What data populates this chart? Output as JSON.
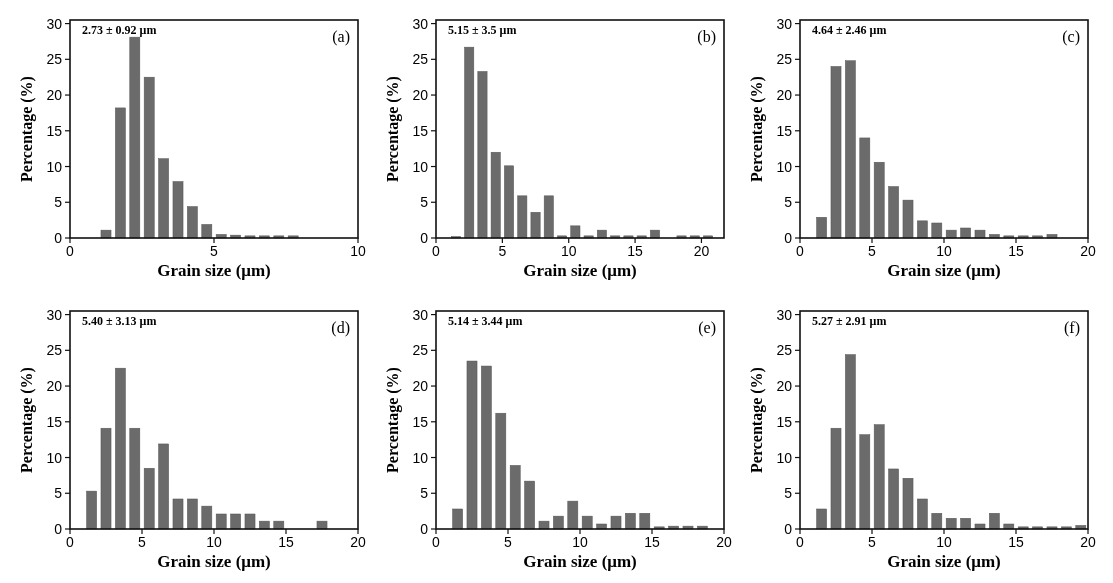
{
  "chart_data": [
    {
      "type": "histogram",
      "xlabel": "Grain size (μm)",
      "ylabel": "Percentage (%)",
      "annotations": [
        "2.73 ± 0.92 μm",
        "(a)"
      ],
      "color": "#6b6b6b",
      "bins": [
        1,
        1.5,
        2,
        2.5,
        3,
        3.5,
        4,
        4.5,
        5,
        5.5,
        6,
        6.5,
        7,
        7.5,
        8
      ],
      "values": [
        1.1,
        18.2,
        28.1,
        22.5,
        11.1,
        7.9,
        4.4,
        1.9,
        0.5,
        0.4,
        0.3,
        0.3,
        0.3,
        0.3
      ],
      "xlim": [
        0,
        10
      ],
      "xticks": [
        0,
        5,
        10
      ],
      "ylim": [
        0,
        30.5
      ],
      "yticks": [
        0,
        5,
        10,
        15,
        20,
        25,
        30
      ]
    },
    {
      "type": "histogram",
      "xlabel": "Grain size (μm)",
      "ylabel": "Percentage (%)",
      "annotations": [
        "5.15 ± 3.5 μm",
        "(b)"
      ],
      "color": "#6b6b6b",
      "bins": [
        1,
        2,
        3,
        4,
        5,
        6,
        7,
        8,
        9,
        10,
        11,
        12,
        13,
        14,
        15,
        16,
        17,
        18,
        19,
        20,
        21
      ],
      "values": [
        0.2,
        26.7,
        23.3,
        12.0,
        10.1,
        5.9,
        3.6,
        5.9,
        0.3,
        1.7,
        0.3,
        1.1,
        0.3,
        0.3,
        0.3,
        1.1,
        0,
        0.3,
        0.3,
        0.3
      ],
      "xlim": [
        0,
        21.7
      ],
      "xticks": [
        0,
        5,
        10,
        15,
        20
      ],
      "ylim": [
        0,
        30.5
      ],
      "yticks": [
        0,
        5,
        10,
        15,
        20,
        25,
        30
      ]
    },
    {
      "type": "histogram",
      "xlabel": "Grain size (μm)",
      "ylabel": "Percentage (%)",
      "annotations": [
        "4.64 ± 2.46 μm",
        "(c)"
      ],
      "color": "#6b6b6b",
      "bins": [
        1,
        2,
        3,
        4,
        5,
        6,
        7,
        8,
        9,
        10,
        11,
        12,
        13,
        14,
        15,
        16,
        17,
        18
      ],
      "values": [
        2.9,
        24.0,
        24.8,
        14.0,
        10.6,
        7.2,
        5.3,
        2.4,
        2.1,
        1.1,
        1.4,
        1.1,
        0.5,
        0.3,
        0.3,
        0.3,
        0.5
      ],
      "xlim": [
        0,
        20
      ],
      "xticks": [
        0,
        5,
        10,
        15,
        20
      ],
      "ylim": [
        0,
        30.5
      ],
      "yticks": [
        0,
        5,
        10,
        15,
        20,
        25,
        30
      ]
    },
    {
      "type": "histogram",
      "xlabel": "Grain size (μm)",
      "ylabel": "Percentage (%)",
      "annotations": [
        "5.40 ± 3.13 μm",
        "(d)"
      ],
      "color": "#6b6b6b",
      "bins": [
        1,
        2,
        3,
        4,
        5,
        6,
        7,
        8,
        9,
        10,
        11,
        12,
        13,
        14,
        15,
        16,
        17,
        18
      ],
      "values": [
        5.3,
        14.1,
        22.5,
        14.1,
        8.5,
        11.9,
        4.2,
        4.2,
        3.2,
        2.1,
        2.1,
        2.1,
        1.1,
        1.1,
        0,
        0,
        1.1
      ],
      "xlim": [
        0,
        20
      ],
      "xticks": [
        0,
        5,
        10,
        15,
        20
      ],
      "ylim": [
        0,
        30.5
      ],
      "yticks": [
        0,
        5,
        10,
        15,
        20,
        25,
        30
      ]
    },
    {
      "type": "histogram",
      "xlabel": "Grain size (μm)",
      "ylabel": "Percentage (%)",
      "annotations": [
        "5.14 ± 3.44 μm",
        "(e)"
      ],
      "color": "#6b6b6b",
      "bins": [
        1,
        2,
        3,
        4,
        5,
        6,
        7,
        8,
        9,
        10,
        11,
        12,
        13,
        14,
        15,
        16,
        17,
        18,
        19
      ],
      "values": [
        2.8,
        23.5,
        22.8,
        16.2,
        8.9,
        6.7,
        1.1,
        1.8,
        3.9,
        1.8,
        0.7,
        1.8,
        2.2,
        2.2,
        0.3,
        0.4,
        0.4,
        0.4
      ],
      "xlim": [
        0,
        20
      ],
      "xticks": [
        0,
        5,
        10,
        15,
        20
      ],
      "ylim": [
        0,
        30.5
      ],
      "yticks": [
        0,
        5,
        10,
        15,
        20,
        25,
        30
      ]
    },
    {
      "type": "histogram",
      "xlabel": "Grain size (μm)",
      "ylabel": "Percentage (%)",
      "annotations": [
        "5.27 ± 2.91 μm",
        "(f)"
      ],
      "color": "#6b6b6b",
      "bins": [
        1,
        2,
        3,
        4,
        5,
        6,
        7,
        8,
        9,
        10,
        11,
        12,
        13,
        14,
        15,
        16,
        17,
        18,
        19,
        20
      ],
      "values": [
        2.8,
        14.1,
        24.4,
        13.2,
        14.6,
        8.4,
        7.1,
        4.2,
        2.2,
        1.5,
        1.5,
        0.7,
        2.2,
        0.7,
        0.3,
        0.3,
        0.3,
        0.3,
        0.5
      ],
      "xlim": [
        0,
        20
      ],
      "xticks": [
        0,
        5,
        10,
        15,
        20
      ],
      "ylim": [
        0,
        30.5
      ],
      "yticks": [
        0,
        5,
        10,
        15,
        20,
        25,
        30
      ]
    }
  ]
}
